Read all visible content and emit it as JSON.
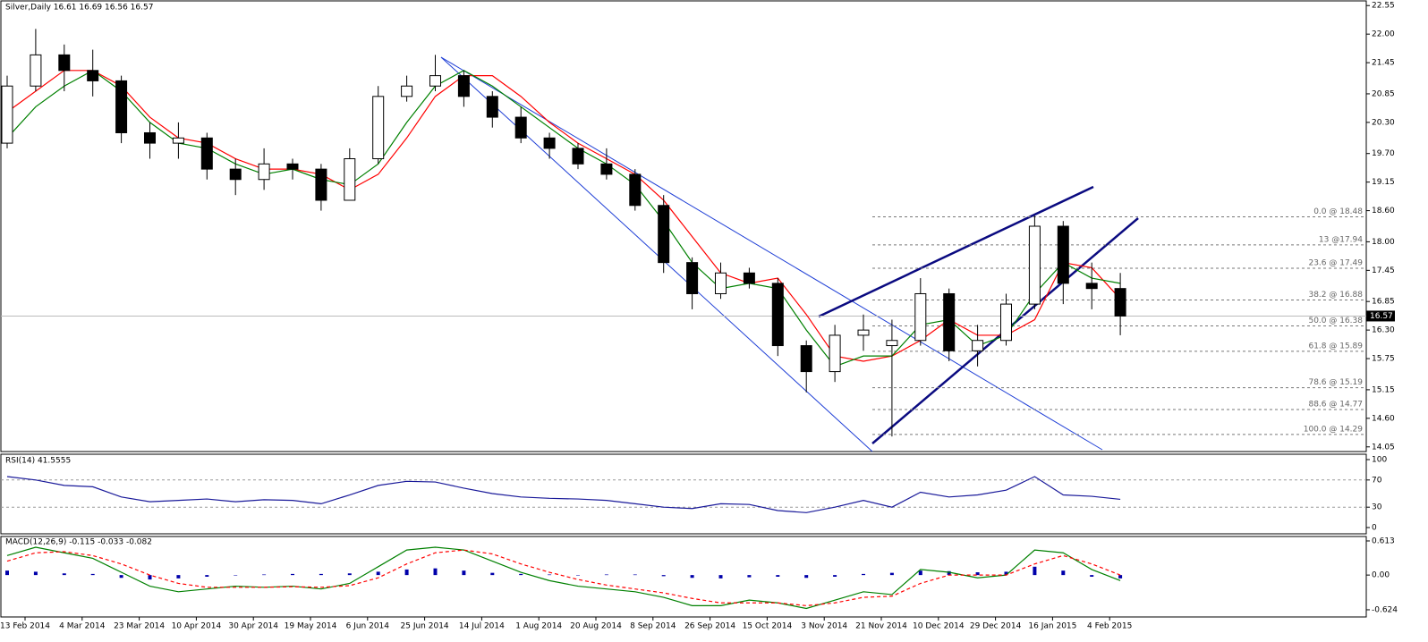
{
  "chart_data": [
    {
      "type": "candlestick",
      "title": "Silver,Daily  16.61 16.69 16.56 16.57",
      "date_labels": [
        "13 Feb 2014",
        "4 Mar 2014",
        "23 Mar 2014",
        "10 Apr 2014",
        "30 Apr 2014",
        "19 May 2014",
        "6 Jun 2014",
        "25 Jun 2014",
        "14 Jul 2014",
        "1 Aug 2014",
        "20 Aug 2014",
        "8 Sep 2014",
        "26 Sep 2014",
        "15 Oct 2014",
        "3 Nov 2014",
        "21 Nov 2014",
        "10 Dec 2014",
        "29 Dec 2014",
        "16 Jan 2015",
        "4 Feb 2015"
      ],
      "open": [
        19.9,
        21.0,
        21.6,
        21.3,
        21.1,
        20.1,
        19.9,
        20.0,
        19.4,
        19.2,
        19.5,
        19.4,
        18.8,
        19.6,
        20.8,
        21.0,
        21.2,
        20.8,
        20.4,
        20.0,
        19.8,
        19.5,
        19.3,
        18.7,
        17.6,
        17.0,
        17.4,
        17.2,
        16.0,
        15.5,
        16.2,
        16.0,
        16.1,
        17.0,
        15.9,
        16.1,
        16.8,
        18.3,
        17.2,
        17.1
      ],
      "high": [
        21.2,
        22.1,
        21.8,
        21.7,
        21.2,
        20.3,
        20.3,
        20.1,
        19.6,
        19.8,
        19.6,
        19.5,
        19.8,
        21.0,
        21.2,
        21.6,
        21.3,
        20.9,
        20.6,
        20.1,
        19.9,
        19.8,
        19.4,
        18.9,
        17.7,
        17.6,
        17.5,
        17.3,
        16.1,
        16.4,
        16.6,
        16.5,
        17.3,
        17.1,
        16.4,
        17.0,
        18.5,
        18.4,
        17.6,
        17.4
      ],
      "low": [
        19.8,
        20.9,
        20.9,
        20.8,
        19.9,
        19.6,
        19.6,
        19.2,
        18.9,
        19.0,
        19.2,
        18.6,
        18.8,
        19.5,
        20.7,
        20.9,
        20.6,
        20.2,
        19.9,
        19.6,
        19.4,
        19.2,
        18.6,
        17.4,
        16.7,
        16.9,
        17.1,
        15.8,
        15.1,
        15.3,
        15.9,
        14.25,
        16.0,
        15.7,
        15.6,
        16.0,
        16.7,
        16.8,
        16.7,
        16.2
      ],
      "close": [
        21.0,
        21.6,
        21.3,
        21.1,
        20.1,
        19.9,
        20.0,
        19.4,
        19.2,
        19.5,
        19.4,
        18.8,
        19.6,
        20.8,
        21.0,
        21.2,
        20.8,
        20.4,
        20.0,
        19.8,
        19.5,
        19.3,
        18.7,
        17.6,
        17.0,
        17.4,
        17.2,
        16.0,
        15.5,
        16.2,
        16.3,
        16.1,
        17.0,
        15.9,
        16.1,
        16.8,
        18.3,
        17.2,
        17.1,
        16.57
      ],
      "series": [
        {
          "color": "#ff0000",
          "values": [
            20.5,
            20.9,
            21.3,
            21.3,
            21.0,
            20.4,
            20.0,
            19.9,
            19.6,
            19.4,
            19.4,
            19.3,
            19.0,
            19.3,
            20.0,
            20.8,
            21.2,
            21.2,
            20.8,
            20.3,
            19.9,
            19.6,
            19.3,
            18.8,
            18.1,
            17.4,
            17.2,
            17.3,
            16.6,
            15.8,
            15.7,
            15.8,
            16.1,
            16.5,
            16.2,
            16.2,
            16.5,
            17.6,
            17.5,
            16.9
          ]
        },
        {
          "color": "#008000",
          "values": [
            20.0,
            20.6,
            21.0,
            21.3,
            20.9,
            20.3,
            19.9,
            19.8,
            19.5,
            19.3,
            19.4,
            19.2,
            19.1,
            19.5,
            20.3,
            21.0,
            21.3,
            21.0,
            20.6,
            20.2,
            19.8,
            19.5,
            19.1,
            18.4,
            17.6,
            17.1,
            17.2,
            17.1,
            16.3,
            15.6,
            15.8,
            15.8,
            16.4,
            16.5,
            16.0,
            16.2,
            17.0,
            17.6,
            17.3,
            17.2
          ]
        }
      ],
      "ylim": [
        13.96,
        22.64
      ],
      "yticks": [
        22.55,
        {
          "value": 22,
          "label": "22.00"
        },
        21.45,
        20.85,
        {
          "value": 20.3,
          "label": "20.30"
        },
        {
          "value": 19.7,
          "label": "19.70"
        },
        19.15,
        {
          "value": 18.6,
          "label": "18.60"
        },
        {
          "value": 18,
          "label": "18.00"
        },
        17.45,
        16.85,
        {
          "value": 16.3,
          "label": "16.30"
        },
        15.75,
        15.15,
        {
          "value": 14.6,
          "label": "14.60"
        },
        14.05
      ],
      "last_price": 16.57,
      "fib_levels": [
        {
          "value": 18.48,
          "label": "0.0 @ 18.48"
        },
        {
          "value": 17.94,
          "label": "13 @17.94"
        },
        {
          "value": 17.49,
          "label": "23.6 @ 17.49"
        },
        {
          "value": 16.88,
          "label": "38.2 @ 16.88"
        },
        {
          "value": 16.38,
          "label": "50.0 @ 16.38"
        },
        {
          "value": 15.89,
          "label": "61.8 @ 15.89"
        },
        {
          "value": 15.19,
          "label": "78.6 @ 15.19"
        },
        {
          "value": 14.77,
          "label": "88.6 @ 14.77"
        },
        {
          "value": 14.29,
          "label": "100.0 @ 14.29"
        }
      ]
    },
    {
      "type": "line",
      "title": "RSI(14) 41.5555",
      "color": "#1a1a9a",
      "values": [
        75,
        70,
        62,
        60,
        45,
        38,
        40,
        42,
        38,
        41,
        40,
        35,
        48,
        62,
        68,
        67,
        58,
        50,
        45,
        43,
        42,
        40,
        35,
        30,
        28,
        35,
        34,
        25,
        22,
        30,
        40,
        30,
        52,
        45,
        48,
        55,
        75,
        48,
        46,
        41.5555
      ],
      "ylim": [
        -9.2,
        107.9
      ],
      "yticks": [
        100,
        70,
        30,
        0
      ],
      "levels": [
        70,
        30
      ]
    },
    {
      "type": "macd",
      "title": "MACD(12,26,9) -0.115 -0.033 -0.082",
      "series": [
        {
          "color": "#008000",
          "values": [
            0.35,
            0.5,
            0.4,
            0.3,
            0.05,
            -0.2,
            -0.3,
            -0.25,
            -0.2,
            -0.22,
            -0.2,
            -0.25,
            -0.15,
            0.15,
            0.45,
            0.5,
            0.45,
            0.25,
            0.05,
            -0.1,
            -0.2,
            -0.25,
            -0.3,
            -0.4,
            -0.55,
            -0.55,
            -0.45,
            -0.5,
            -0.6,
            -0.45,
            -0.3,
            -0.35,
            0.1,
            0.05,
            -0.05,
            0.0,
            0.45,
            0.4,
            0.1,
            -0.1
          ]
        },
        {
          "color": "#ff0000",
          "values": [
            0.25,
            0.4,
            0.42,
            0.35,
            0.2,
            0.0,
            -0.15,
            -0.22,
            -0.22,
            -0.22,
            -0.21,
            -0.22,
            -0.19,
            -0.05,
            0.2,
            0.4,
            0.45,
            0.38,
            0.2,
            0.05,
            -0.08,
            -0.18,
            -0.25,
            -0.32,
            -0.42,
            -0.5,
            -0.5,
            -0.5,
            -0.55,
            -0.5,
            -0.4,
            -0.38,
            -0.15,
            0.0,
            0.0,
            0.0,
            0.2,
            0.35,
            0.2,
            0.0
          ]
        }
      ],
      "histogram": {
        "color": "#0000aa",
        "values": [
          0.08,
          0.06,
          0.03,
          0.02,
          -0.05,
          -0.08,
          -0.06,
          -0.03,
          0.0,
          0.01,
          0.02,
          0.02,
          0.03,
          0.06,
          0.1,
          0.12,
          0.08,
          0.04,
          0.02,
          0.01,
          0.0,
          0.01,
          0.01,
          -0.02,
          -0.05,
          -0.06,
          -0.04,
          -0.03,
          -0.05,
          -0.03,
          0.02,
          0.04,
          0.08,
          0.07,
          0.05,
          0.06,
          0.15,
          0.08,
          -0.03,
          -0.06
        ]
      },
      "ylim": [
        -0.753,
        0.693
      ],
      "yticks": [
        0.613,
        {
          "value": 0,
          "label": "0.00"
        },
        -0.624
      ]
    }
  ]
}
